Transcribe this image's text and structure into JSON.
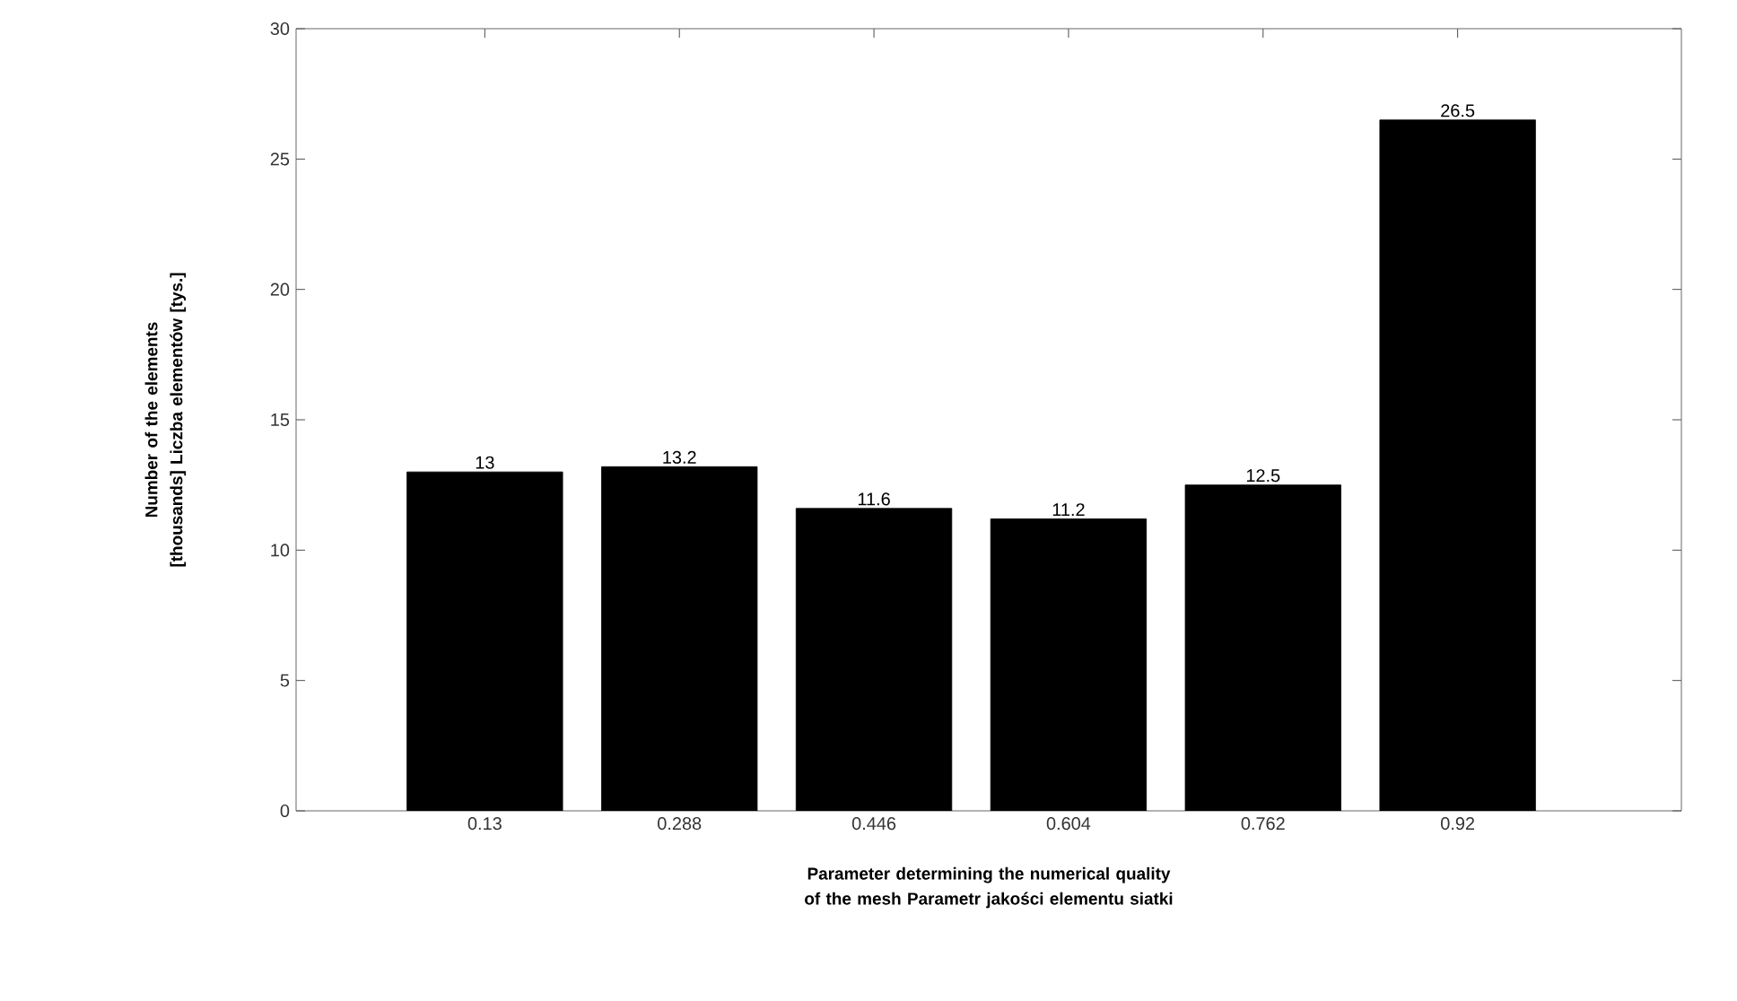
{
  "chart_data": {
    "type": "bar",
    "xlabel": "Parameter determining the numerical quality of the mesh Parametr jakości elementu siatki",
    "ylabel": "Number of the elements [thousands] Liczba elementów [tys.]",
    "categories": [
      "0.13",
      "0.288",
      "0.446",
      "0.604",
      "0.762",
      "0.92"
    ],
    "values": [
      13,
      13.2,
      11.6,
      11.2,
      12.5,
      26.5
    ],
    "color": "#000000",
    "ylim": [
      0,
      30
    ],
    "yticks": [
      0,
      5,
      10,
      15,
      20,
      25,
      30
    ],
    "data_labels": true,
    "grid": false
  }
}
